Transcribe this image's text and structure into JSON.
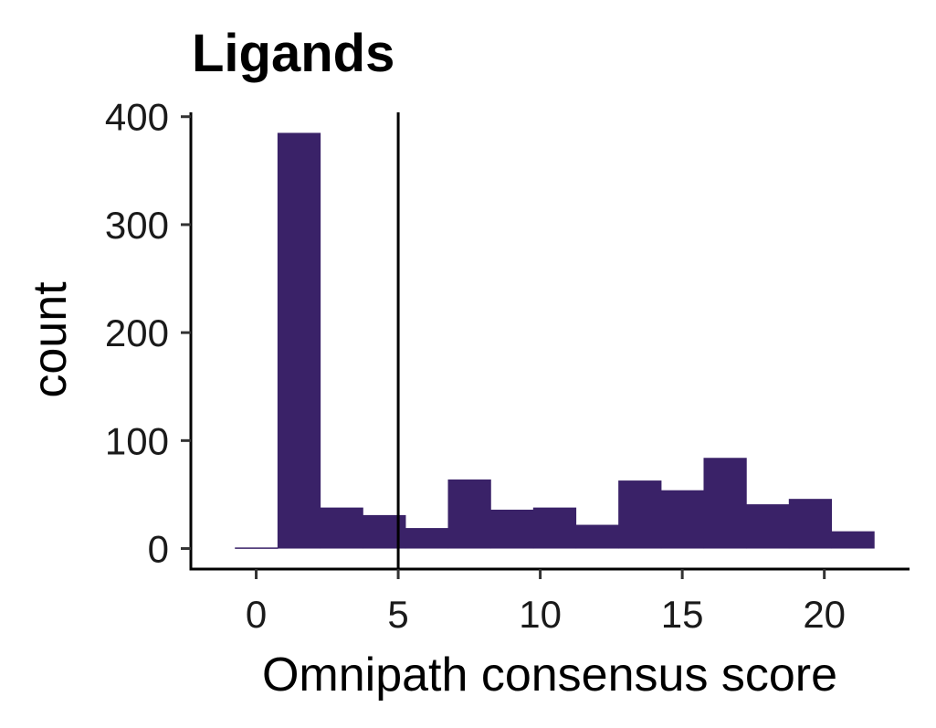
{
  "chart_data": {
    "type": "bar",
    "title": "Ligands",
    "xlabel": "Omnipath consensus score",
    "ylabel": "count",
    "bin_width": 1.5,
    "bin_start": -0.75,
    "counts": [
      1,
      385,
      38,
      31,
      19,
      64,
      36,
      38,
      22,
      63,
      54,
      84,
      41,
      46,
      16
    ],
    "xlim": [
      -2.3,
      23
    ],
    "ylim": [
      -19,
      404
    ],
    "x_ticks": [
      0,
      5,
      10,
      15,
      20
    ],
    "x_tick_labels": [
      "0",
      "5",
      "10",
      "15",
      "20"
    ],
    "y_ticks": [
      0,
      100,
      200,
      300,
      400
    ],
    "y_tick_labels": [
      "0",
      "100",
      "200",
      "300",
      "400"
    ],
    "vline_x": 5,
    "bar_color": "#3A2268",
    "grid": false,
    "legend": "none"
  }
}
